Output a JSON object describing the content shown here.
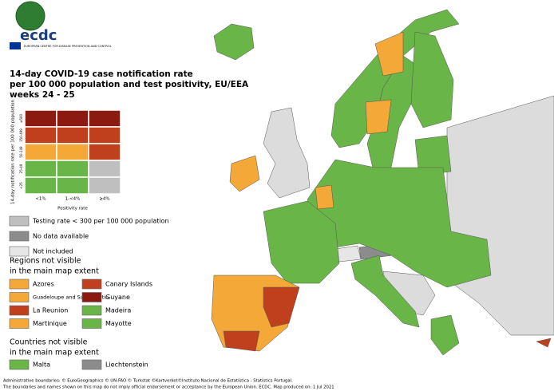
{
  "logo": {
    "name": "ecdc",
    "subtitle": "EUROPEAN CENTRE FOR DISEASE PREVENTION AND CONTROL"
  },
  "title_lines": [
    "14-day COVID-19 case notification rate",
    "per 100 000 population and test positivity, EU/EEA",
    "weeks 24 - 25"
  ],
  "matrix": {
    "y_label": "14-day notification rate per 100 000 population",
    "x_label": "Positivity rate",
    "rows": [
      "≥500",
      "150-499",
      "50-149",
      "25-49",
      "<25"
    ],
    "columns": [
      "<1%",
      "1-<4%",
      "≥4%"
    ],
    "colors": [
      [
        "#8b1a10",
        "#8b1a10",
        "#8b1a10"
      ],
      [
        "#c0401e",
        "#c0401e",
        "#c0401e"
      ],
      [
        "#f3a838",
        "#f3a838",
        "#c0401e"
      ],
      [
        "#6ab547",
        "#6ab547",
        "#bfbfbf"
      ],
      [
        "#6ab547",
        "#6ab547",
        "#bfbfbf"
      ]
    ]
  },
  "legend": [
    {
      "label": "Testing rate < 300 per 100 000 population",
      "color": "#bfbfbf"
    },
    {
      "label": "No data available",
      "color": "#8c8c8c"
    },
    {
      "label": "Not included",
      "color": "#e6e6e6"
    }
  ],
  "regions": {
    "title_lines": [
      "Regions not visible",
      "in the main map extent"
    ],
    "items": [
      {
        "label": "Azores",
        "color": "#f3a838"
      },
      {
        "label": "Guadeloupe and Saint Martin",
        "color": "#f3a838"
      },
      {
        "label": "La Reunion",
        "color": "#c0401e"
      },
      {
        "label": "Martinique",
        "color": "#f3a838"
      },
      {
        "label": "Canary Islands",
        "color": "#c0401e"
      },
      {
        "label": "Guyane",
        "color": "#8b1a10"
      },
      {
        "label": "Madeira",
        "color": "#6ab547"
      },
      {
        "label": "Mayotte",
        "color": "#6ab547"
      }
    ]
  },
  "countries": {
    "title_lines": [
      "Countries not visible",
      "in the main map extent"
    ],
    "items": [
      {
        "label": "Malta",
        "color": "#6ab547"
      },
      {
        "label": "Liechtenstein",
        "color": "#8c8c8c"
      }
    ]
  },
  "footer": [
    "Administrative boundaries: © EuroGeographics © UN-FAO © Turkstat ©Kartverket©Instituto Nacional de Estatística - Statistics Portugal.",
    "The boundaries and names shown on this map do not imply official endorsement or acceptance by the European Union. ECDC. Map produced on: 1 Jul 2021"
  ]
}
